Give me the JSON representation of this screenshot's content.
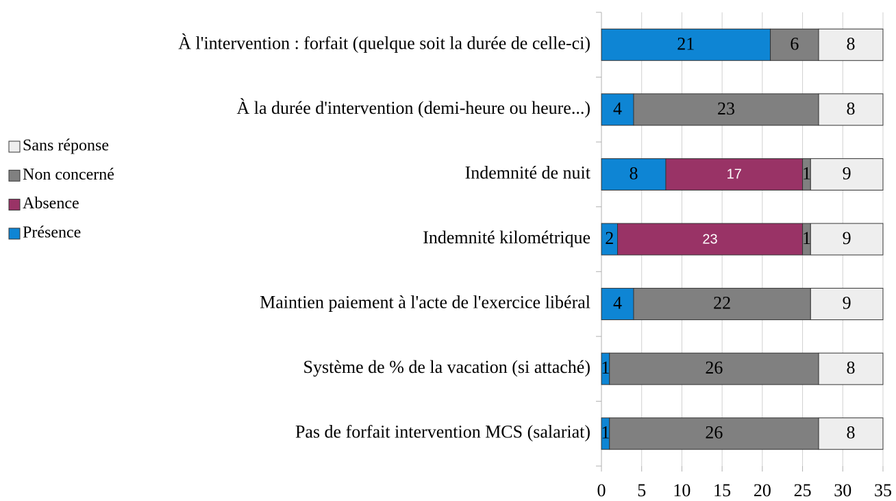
{
  "chart_data": {
    "type": "stacked-barh",
    "categories": [
      "À l'intervention : forfait (quelque soit la durée de celle-ci)",
      "À la durée d'intervention (demi-heure ou heure...)",
      "Indemnité de nuit",
      "Indemnité kilométrique",
      "Maintien paiement à l'acte de l'exercice libéral",
      "Système de % de la vacation (si attaché)",
      "Pas de forfait intervention MCS (salariat)"
    ],
    "series": [
      {
        "name": "Présence",
        "color": "#0e85d4",
        "label_color": "#000000",
        "values": [
          21,
          4,
          8,
          2,
          4,
          1,
          1
        ]
      },
      {
        "name": "Absence",
        "color": "#993366",
        "label_color": "#ffffff",
        "values": [
          null,
          null,
          17,
          23,
          null,
          null,
          null
        ]
      },
      {
        "name": "Non concerné",
        "color": "#808080",
        "label_color": "#000000",
        "values": [
          6,
          23,
          1,
          1,
          22,
          26,
          26
        ]
      },
      {
        "name": "Sans réponse",
        "color": "#eeeeee",
        "label_color": "#000000",
        "values": [
          8,
          8,
          9,
          9,
          9,
          8,
          8
        ]
      }
    ],
    "xlim": [
      0,
      35
    ],
    "xticks": [
      0,
      5,
      10,
      15,
      20,
      25,
      30,
      35
    ],
    "grid": true,
    "legend": "left"
  }
}
